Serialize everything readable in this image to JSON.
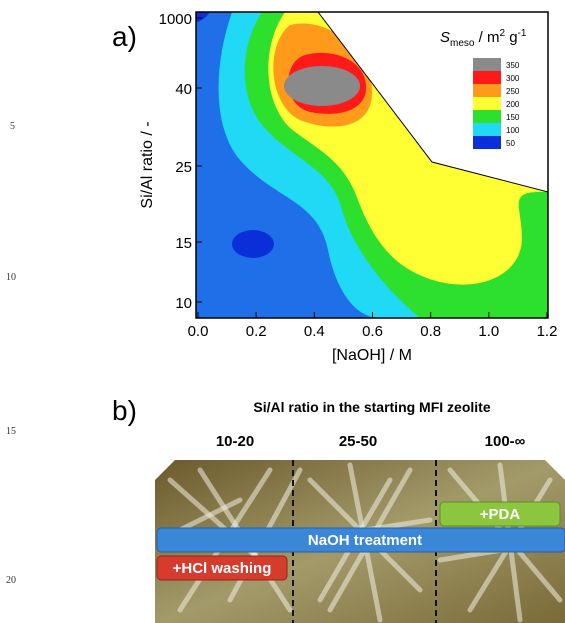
{
  "line_numbers": [
    "5",
    "10",
    "15",
    "20"
  ],
  "figure_a": {
    "panel_label": "a)",
    "y_label": "Si/Al ratio / -",
    "y_ticks": [
      "1000",
      "40",
      "25",
      "15",
      "10"
    ],
    "x_label": "[NaOH] / M",
    "x_ticks": [
      "0.0",
      "0.2",
      "0.4",
      "0.6",
      "0.8",
      "1.0",
      "1.2"
    ],
    "legend": {
      "title_symbol": "S",
      "title_subscript": "meso",
      "title_unit": " / m",
      "title_sup1": "2",
      "title_unit2": " g",
      "title_sup2": "-1",
      "levels": [
        "350",
        "300",
        "250",
        "200",
        "150",
        "100",
        "50"
      ]
    }
  },
  "figure_b": {
    "panel_label": "b)",
    "title": "Si/Al ratio in the starting MFI zeolite",
    "columns": [
      "10-20",
      "25-50",
      "100-∞"
    ],
    "bars": [
      "+PDA",
      "NaOH treatment",
      "+HCl washing"
    ]
  }
}
